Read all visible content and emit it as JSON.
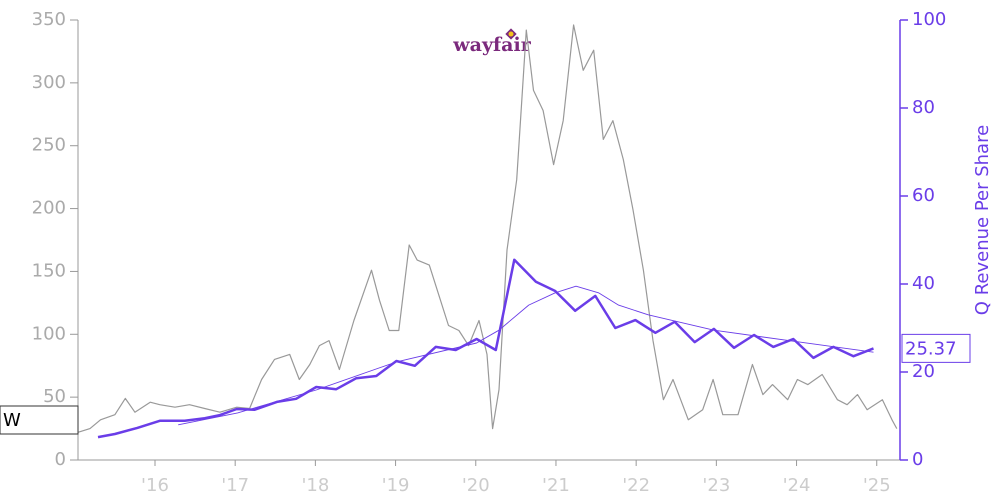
{
  "chart_data": {
    "type": "line",
    "logo_text": "wayfair",
    "ticker": "W",
    "current_value": 25.37,
    "y2_label": "Q Revenue Per Share",
    "xlim": [
      2015.04,
      2025.29
    ],
    "xticks": [
      {
        "value": 2016,
        "label": "'16"
      },
      {
        "value": 2017,
        "label": "'17"
      },
      {
        "value": 2018,
        "label": "'18"
      },
      {
        "value": 2019,
        "label": "'19"
      },
      {
        "value": 2020,
        "label": "'20"
      },
      {
        "value": 2021,
        "label": "'21"
      },
      {
        "value": 2022,
        "label": "'22"
      },
      {
        "value": 2023,
        "label": "'23"
      },
      {
        "value": 2024,
        "label": "'24"
      },
      {
        "value": 2025,
        "label": "'25"
      }
    ],
    "ylim": [
      0,
      350
    ],
    "yticks": [
      0,
      50,
      100,
      150,
      200,
      250,
      300,
      350
    ],
    "y2lim": [
      0,
      100
    ],
    "y2ticks": [
      0,
      20,
      40,
      60,
      80,
      100
    ],
    "series": [
      {
        "color": "#999999",
        "width": 1.2,
        "x": [
          2015.04,
          2015.19,
          2015.32,
          2015.5,
          2015.63,
          2015.75,
          2015.94,
          2016.06,
          2016.25,
          2016.43,
          2016.62,
          2016.81,
          2017.02,
          2017.18,
          2017.33,
          2017.49,
          2017.68,
          2017.8,
          2017.93,
          2018.05,
          2018.17,
          2018.3,
          2018.48,
          2018.7,
          2018.8,
          2018.92,
          2019.04,
          2019.17,
          2019.27,
          2019.42,
          2019.54,
          2019.66,
          2019.79,
          2019.91,
          2020.04,
          2020.14,
          2020.21,
          2020.29,
          2020.39,
          2020.51,
          2020.63,
          2020.72,
          2020.84,
          2020.97,
          2021.09,
          2021.22,
          2021.34,
          2021.47,
          2021.59,
          2021.71,
          2021.84,
          2021.96,
          2022.09,
          2022.21,
          2022.34,
          2022.46,
          2022.65,
          2022.83,
          2022.96,
          2023.08,
          2023.27,
          2023.45,
          2023.58,
          2023.7,
          2023.89,
          2024.01,
          2024.14,
          2024.32,
          2024.51,
          2024.63,
          2024.76,
          2024.88,
          2025.07,
          2025.19,
          2025.25
        ],
        "values": [
          22,
          25,
          32,
          36,
          49,
          38,
          46,
          44,
          42,
          44,
          41,
          38,
          42,
          41,
          64,
          80,
          84,
          64,
          76,
          91,
          95,
          72,
          111,
          151,
          127,
          103,
          103,
          171,
          159,
          155,
          131,
          107,
          103,
          91,
          111,
          84,
          25,
          56,
          167,
          223,
          342,
          294,
          278,
          235,
          270,
          346,
          310,
          326,
          255,
          270,
          239,
          199,
          151,
          95,
          48,
          64,
          32,
          40,
          64,
          36,
          36,
          76,
          52,
          60,
          48,
          64,
          60,
          68,
          48,
          44,
          52,
          40,
          48,
          32,
          25
        ]
      },
      {
        "color": "#6a3de8",
        "width": 2.5,
        "axis": "y2",
        "x": [
          2015.29,
          2015.5,
          2015.78,
          2016.06,
          2016.37,
          2016.62,
          2016.81,
          2017.02,
          2017.24,
          2017.52,
          2017.76,
          2018.01,
          2018.26,
          2018.51,
          2018.76,
          2019.01,
          2019.24,
          2019.5,
          2019.75,
          2020.01,
          2020.25,
          2020.48,
          2020.75,
          2020.99,
          2021.24,
          2021.49,
          2021.74,
          2021.99,
          2022.24,
          2022.48,
          2022.73,
          2022.97,
          2023.22,
          2023.47,
          2023.71,
          2023.96,
          2024.21,
          2024.46,
          2024.71,
          2024.96
        ],
        "values": [
          5.2,
          5.9,
          7.3,
          8.9,
          8.9,
          9.5,
          10.2,
          11.6,
          11.4,
          13.2,
          13.9,
          16.6,
          16.1,
          18.6,
          19.1,
          22.5,
          21.4,
          25.7,
          25.0,
          27.5,
          25.0,
          45.5,
          40.5,
          38.4,
          33.9,
          37.3,
          30.0,
          31.8,
          28.9,
          31.4,
          26.8,
          29.8,
          25.5,
          28.4,
          25.7,
          27.5,
          23.2,
          25.7,
          23.6,
          25.37
        ]
      },
      {
        "color": "#6a3de8",
        "width": 0.9,
        "axis": "y2",
        "x": [
          2016.29,
          2017.03,
          2018.01,
          2019.01,
          2020.01,
          2020.29,
          2020.66,
          2020.99,
          2021.25,
          2021.53,
          2021.78,
          2022.15,
          2022.97,
          2023.96,
          2024.96
        ],
        "values": [
          8.0,
          10.7,
          15.9,
          22.3,
          26.6,
          29.5,
          35.2,
          38.0,
          39.5,
          38.0,
          35.2,
          33.0,
          29.5,
          27.0,
          24.5
        ]
      }
    ]
  }
}
